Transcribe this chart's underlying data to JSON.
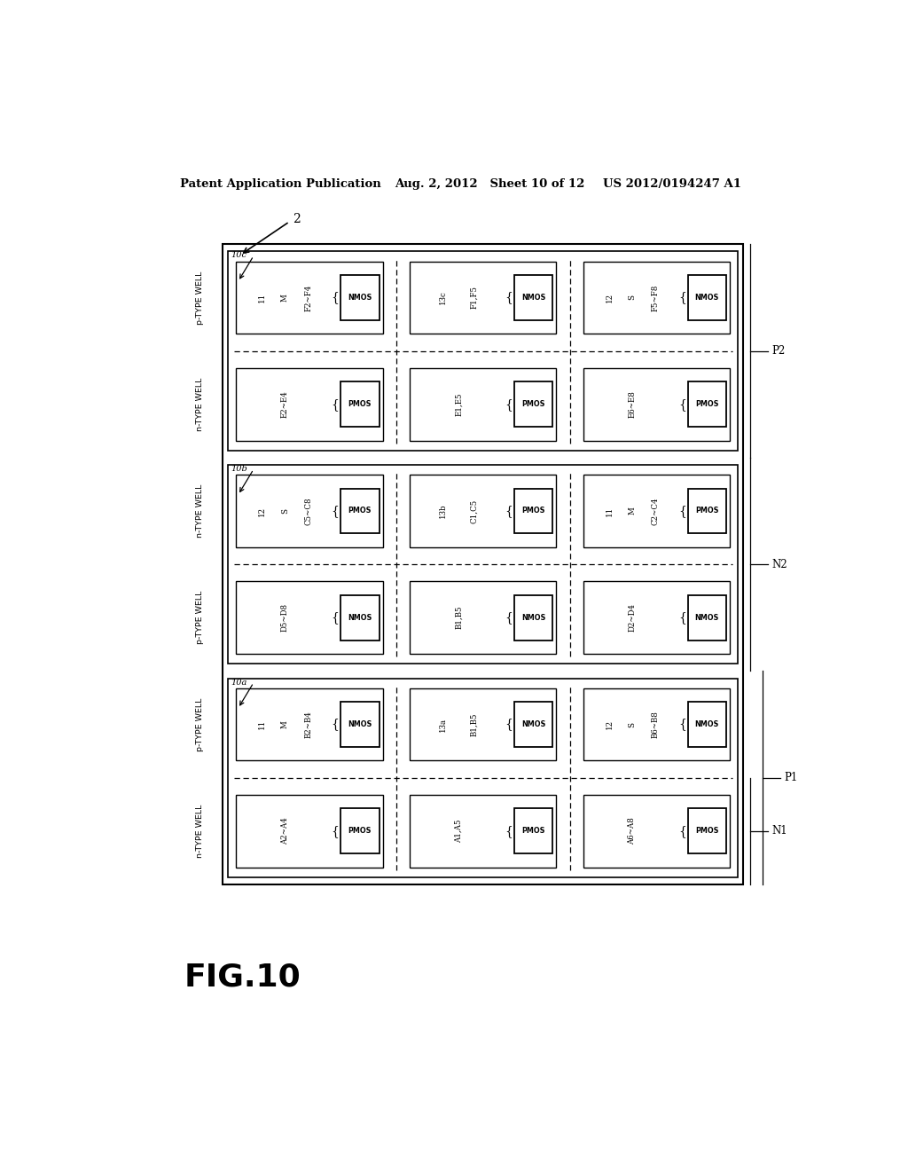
{
  "bg_color": "#ffffff",
  "header_left": "Patent Application Publication",
  "header_mid": "Aug. 2, 2012   Sheet 10 of 12",
  "header_right": "US 2012/0194247 A1",
  "figure_label": "FIG.10",
  "ref_num": "2",
  "diagram": {
    "ox1": 0.155,
    "oy1": 0.175,
    "ox2": 0.895,
    "oy2": 0.885,
    "n_cols": 3,
    "n_bands": 6,
    "group_boundaries": [
      0,
      2,
      4,
      6
    ],
    "band_order_bottom_to_top": [
      {
        "band": 0,
        "type": "n-TYPE WELL",
        "cells": [
          {
            "lines": [
              "A2~A4"
            ],
            "box": "PMOS"
          },
          {
            "lines": [
              "A1,A5"
            ],
            "box": "PMOS"
          },
          {
            "lines": [
              "A6~A8"
            ],
            "box": "PMOS"
          }
        ]
      },
      {
        "band": 1,
        "type": "p-TYPE WELL",
        "label": "10a",
        "cells": [
          {
            "lines": [
              "11",
              "M",
              "B2~B4"
            ],
            "box": "NMOS"
          },
          {
            "lines": [
              "13a",
              "B1,B5"
            ],
            "box": "NMOS"
          },
          {
            "lines": [
              "12",
              "S",
              "B6~B8"
            ],
            "box": "NMOS"
          }
        ]
      },
      {
        "band": 2,
        "type": "p-TYPE WELL",
        "cells": [
          {
            "lines": [
              "D5~D8"
            ],
            "box": "NMOS"
          },
          {
            "lines": [
              "B1,B5"
            ],
            "box": "NMOS"
          },
          {
            "lines": [
              "D2~D4"
            ],
            "box": "NMOS"
          }
        ]
      },
      {
        "band": 3,
        "type": "n-TYPE WELL",
        "label": "10b",
        "cells": [
          {
            "lines": [
              "12",
              "S",
              "C5~C8"
            ],
            "box": "PMOS"
          },
          {
            "lines": [
              "13b",
              "C1,C5"
            ],
            "box": "PMOS"
          },
          {
            "lines": [
              "11",
              "M",
              "C2~C4"
            ],
            "box": "PMOS"
          }
        ]
      },
      {
        "band": 4,
        "type": "n-TYPE WELL",
        "cells": [
          {
            "lines": [
              "E2~E4"
            ],
            "box": "PMOS"
          },
          {
            "lines": [
              "E1,E5"
            ],
            "box": "PMOS"
          },
          {
            "lines": [
              "E6~E8"
            ],
            "box": "PMOS"
          }
        ]
      },
      {
        "band": 5,
        "type": "p-TYPE WELL",
        "label": "10c",
        "cells": [
          {
            "lines": [
              "11",
              "M",
              "F2~F4"
            ],
            "box": "NMOS"
          },
          {
            "lines": [
              "13c",
              "F1,F5"
            ],
            "box": "NMOS"
          },
          {
            "lines": [
              "12",
              "S",
              "F5~F8"
            ],
            "box": "NMOS"
          }
        ]
      }
    ],
    "dashed_bands": [
      0,
      2,
      4
    ],
    "right_labels": [
      {
        "label": "N1",
        "bands": [
          0
        ]
      },
      {
        "label": "P1",
        "bands": [
          0,
          1,
          2
        ]
      },
      {
        "label": "N2",
        "bands": [
          2,
          3,
          4
        ]
      },
      {
        "label": "P2",
        "bands": [
          4,
          5
        ]
      }
    ],
    "well_side_labels": [
      {
        "text": "n-TYPE WELL",
        "band": 0
      },
      {
        "text": "p-TYPE WELL",
        "band": 1
      },
      {
        "text": "p-TYPE WELL",
        "band": 2
      },
      {
        "text": "n-TYPE WELL",
        "band": 3
      },
      {
        "text": "n-TYPE WELL",
        "band": 4
      },
      {
        "text": "p-TYPE WELL",
        "band": 5
      }
    ]
  }
}
